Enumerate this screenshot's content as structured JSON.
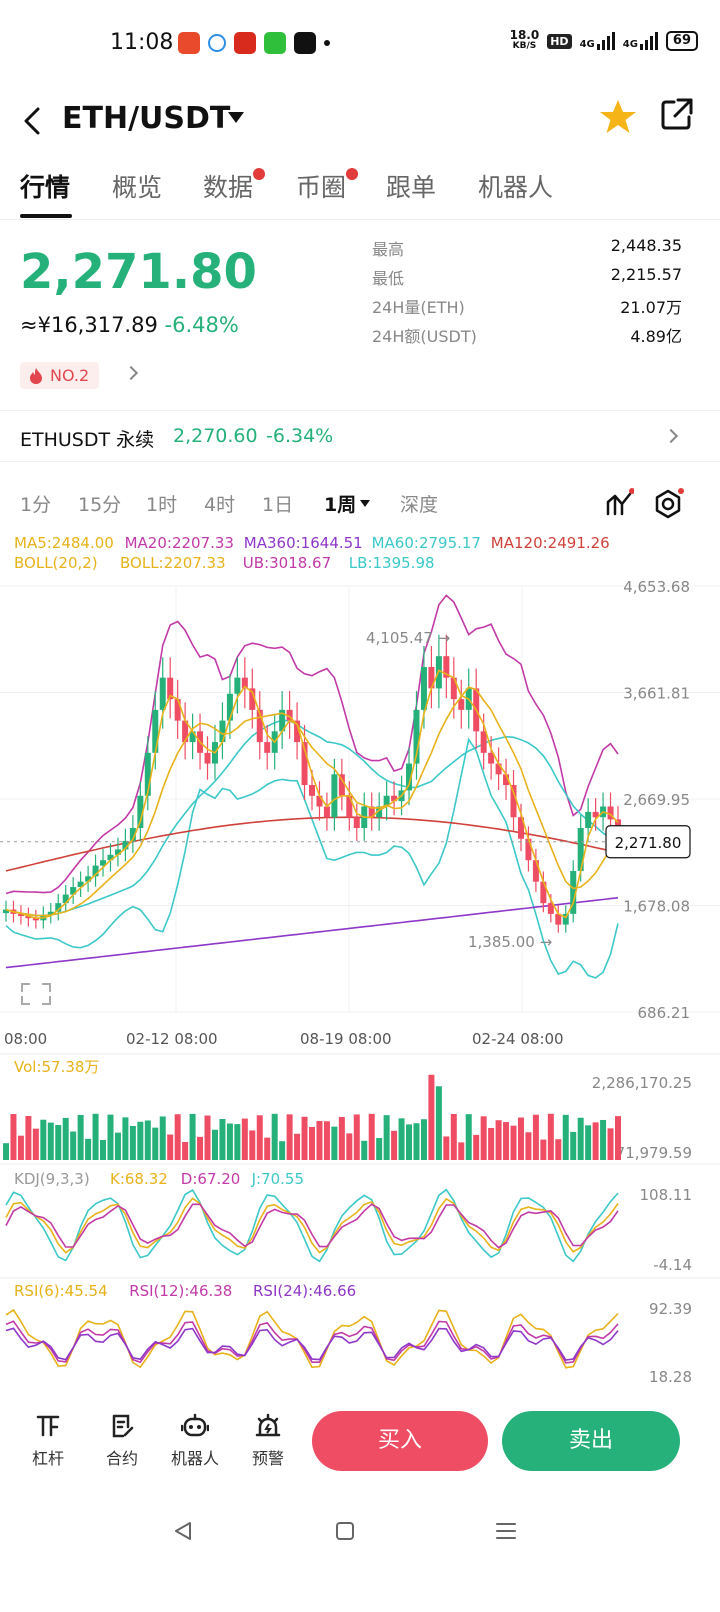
{
  "status_bar": {
    "time": "11:08",
    "net_speed": "18.0\nKB/S",
    "net_speed_value": "18.0",
    "net_speed_unit": "KB/S",
    "hd_label": "HD",
    "signal1": "4G",
    "signal2": "4G",
    "battery": "69"
  },
  "header": {
    "pair": "ETH/USDT"
  },
  "tabs": [
    {
      "label": "行情",
      "active": true,
      "dot": false
    },
    {
      "label": "概览",
      "active": false,
      "dot": false
    },
    {
      "label": "数据",
      "active": false,
      "dot": true
    },
    {
      "label": "币圈",
      "active": false,
      "dot": true
    },
    {
      "label": "跟单",
      "active": false,
      "dot": false
    },
    {
      "label": "机器人",
      "active": false,
      "dot": false
    }
  ],
  "price": {
    "last": "2,271.80",
    "fiat": "≈¥16,317.89",
    "change": "-6.48%",
    "rank": "NO.2"
  },
  "stats": [
    {
      "label": "最高",
      "value": "2,448.35"
    },
    {
      "label": "最低",
      "value": "2,215.57"
    },
    {
      "label": "24H量(ETH)",
      "value": "21.07万"
    },
    {
      "label": "24H额(USDT)",
      "value": "4.89亿"
    }
  ],
  "perpetual": {
    "name": "ETHUSDT 永续",
    "price": "2,270.60",
    "change": "-6.34%"
  },
  "intervals": [
    {
      "label": "1分",
      "active": false
    },
    {
      "label": "15分",
      "active": false
    },
    {
      "label": "1时",
      "active": false
    },
    {
      "label": "4时",
      "active": false
    },
    {
      "label": "1日",
      "active": false
    },
    {
      "label": "1周",
      "active": true
    },
    {
      "label": "深度",
      "active": false
    }
  ],
  "colors": {
    "up": "#26b17a",
    "down": "#ef4d63",
    "ma5": "#e8b21a",
    "ma20": "#c23aa8",
    "ma360": "#8e37c9",
    "ma60": "#3cc8c8",
    "ma120": "#d0413a"
  },
  "indicators": {
    "ma": [
      {
        "text": "MA5:2484.00",
        "color": "#e8b21a"
      },
      {
        "text": "MA20:2207.33",
        "color": "#c23aa8"
      },
      {
        "text": "MA360:1644.51",
        "color": "#8e37c9"
      },
      {
        "text": "MA60:2795.17",
        "color": "#3cc8c8"
      },
      {
        "text": "MA120:2491.26",
        "color": "#d0413a"
      }
    ],
    "boll": [
      {
        "text": "BOLL(20,2)",
        "color": "#e8b21a"
      },
      {
        "text": "BOLL:2207.33",
        "color": "#e8b21a"
      },
      {
        "text": "UB:3018.67",
        "color": "#c23aa8"
      },
      {
        "text": "LB:1395.98",
        "color": "#3cc8c8"
      }
    ],
    "vol": {
      "text": "Vol:57.38万",
      "color": "#e8b21a"
    },
    "kdj": [
      {
        "text": "KDJ(9,3,3)",
        "color": "#999999"
      },
      {
        "text": "K:68.32",
        "color": "#e8b21a"
      },
      {
        "text": "D:67.20",
        "color": "#c23aa8"
      },
      {
        "text": "J:70.55",
        "color": "#3cc8c8"
      }
    ],
    "rsi": [
      {
        "text": "RSI(6):45.54",
        "color": "#e8b21a"
      },
      {
        "text": "RSI(12):46.38",
        "color": "#c23aa8"
      },
      {
        "text": "RSI(24):46.66",
        "color": "#8e37c9"
      }
    ]
  },
  "chart_data": {
    "type": "candlestick",
    "price_axis_ticks": [
      "4,653.68",
      "3,661.81",
      "2,669.95",
      "1,678.08",
      "686.21"
    ],
    "price_axis_values": [
      4653.68,
      3661.81,
      2669.95,
      1678.08,
      686.21
    ],
    "time_axis_labels": [
      "08:00",
      "02-12 08:00",
      "08-19 08:00",
      "02-24 08:00"
    ],
    "current_price_label": "2,271.80",
    "current_price": 2271.8,
    "high_annotation": "4,105.47",
    "high_value": 4105.47,
    "low_annotation": "1,385.00",
    "low_value": 1385.0,
    "vol_axis": [
      "2,286,170.25",
      "71,979.59"
    ],
    "kdj_axis": [
      "108.11",
      "-4.14"
    ],
    "rsi_axis": [
      "92.39",
      "18.28"
    ],
    "closes": [
      1640,
      1600,
      1580,
      1560,
      1540,
      1590,
      1620,
      1700,
      1780,
      1850,
      1900,
      1950,
      2050,
      2100,
      2150,
      2200,
      2280,
      2400,
      2700,
      3100,
      3500,
      3800,
      3600,
      3400,
      3200,
      3300,
      3100,
      3000,
      3200,
      3400,
      3650,
      3800,
      3700,
      3500,
      3200,
      3100,
      3300,
      3500,
      3400,
      3200,
      2800,
      2700,
      2600,
      2500,
      2900,
      2700,
      2500,
      2400,
      2600,
      2500,
      2600,
      2700,
      2650,
      2750,
      3000,
      3500,
      3900,
      3700,
      4000,
      3800,
      3600,
      3500,
      3700,
      3300,
      3100,
      3000,
      2900,
      2800,
      2500,
      2300,
      2100,
      1900,
      1700,
      1600,
      1500,
      1600,
      2000,
      2400,
      2550,
      2500,
      2600,
      2480,
      2271.8
    ]
  }
}
